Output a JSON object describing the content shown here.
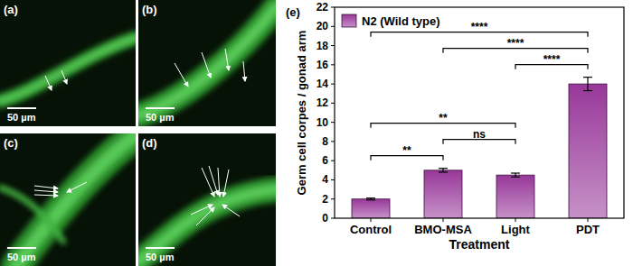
{
  "images": [
    {
      "label": "(a)",
      "scale_bar": "50 µm"
    },
    {
      "label": "(b)",
      "scale_bar": "50 µm"
    },
    {
      "label": "(c)",
      "scale_bar": "50 µm"
    },
    {
      "label": "(d)",
      "scale_bar": "50 µm"
    }
  ],
  "chart_data": {
    "type": "bar",
    "panel_label": "(e)",
    "categories": [
      "Control",
      "BMO-MSA",
      "Light",
      "PDT"
    ],
    "series": [
      {
        "name": "N2 (Wild type)",
        "color": "#98389a",
        "values": [
          2,
          5,
          4.5,
          14
        ],
        "errors": [
          0.1,
          0.2,
          0.2,
          0.7
        ]
      }
    ],
    "xlabel": "Treatment",
    "ylabel": "Germ cell corpes / gonad arm",
    "ylim": [
      0,
      22
    ],
    "yticks": [
      0,
      2,
      4,
      6,
      8,
      10,
      12,
      14,
      16,
      18,
      20,
      22
    ],
    "legend": "upper left",
    "comparisons": [
      {
        "from": 0,
        "to": 1,
        "label": "**"
      },
      {
        "from": 1,
        "to": 2,
        "label": "ns"
      },
      {
        "from": 0,
        "to": 2,
        "label": "**"
      },
      {
        "from": 2,
        "to": 3,
        "label": "****"
      },
      {
        "from": 1,
        "to": 3,
        "label": "****"
      },
      {
        "from": 0,
        "to": 3,
        "label": "****"
      }
    ]
  }
}
